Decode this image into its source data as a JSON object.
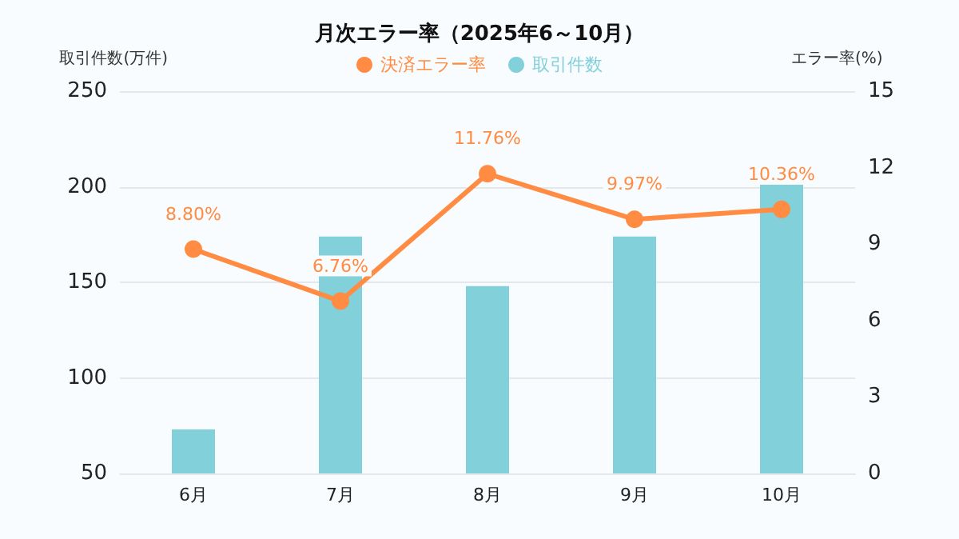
{
  "chart_data": {
    "type": "bar",
    "title": "月次エラー率（2025年6～10月）",
    "ylabel": "取引件数(万件)",
    "y2label": "エラー率(%)",
    "categories": [
      "6月",
      "7月",
      "8月",
      "9月",
      "10月"
    ],
    "series": [
      {
        "name": "決済エラー率",
        "type": "line",
        "axis": "y2",
        "color": "#ff8c42",
        "values": [
          8.8,
          6.76,
          11.76,
          9.97,
          10.36
        ],
        "value_labels": [
          "8.80%",
          "6.76%",
          "11.76%",
          "9.97%",
          "10.36%"
        ]
      },
      {
        "name": "取引件数",
        "color": "#82d0da",
        "values": [
          73,
          174,
          148,
          174,
          201
        ]
      }
    ],
    "ylim": [
      50,
      250
    ],
    "yticks": [
      50,
      100,
      150,
      200,
      250
    ],
    "y2lim": [
      0,
      15
    ],
    "y2ticks": [
      0,
      3,
      6,
      9,
      12,
      15
    ],
    "grid": "y",
    "legend": "top",
    "marker": "circle",
    "line_style": "solid"
  }
}
